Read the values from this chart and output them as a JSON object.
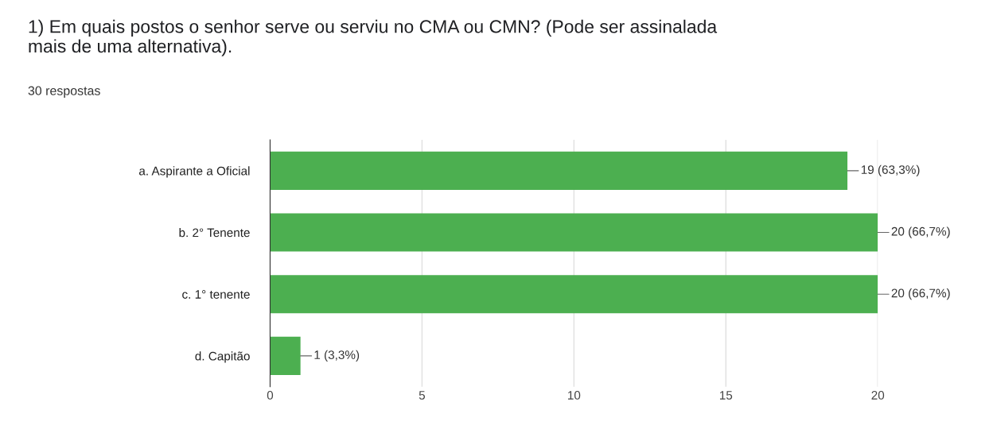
{
  "chart_data": {
    "type": "bar",
    "orientation": "horizontal",
    "title": "1) Em quais postos o senhor serve ou serviu no CMA ou CMN? (Pode ser assinalada mais de uma alternativa).",
    "subtitle": "30 respostas",
    "categories": [
      "a. Aspirante a Oficial",
      "b. 2° Tenente",
      "c. 1° tenente",
      "d. Capitão"
    ],
    "values": [
      19,
      20,
      20,
      1
    ],
    "value_labels": [
      "19 (63,3%)",
      "20 (66,7%)",
      "20 (66,7%)",
      "1 (3,3%)"
    ],
    "color": "#4caf50",
    "xlim": [
      0,
      20
    ],
    "xticks": [
      0,
      5,
      10,
      15,
      20
    ],
    "grid": "x"
  }
}
